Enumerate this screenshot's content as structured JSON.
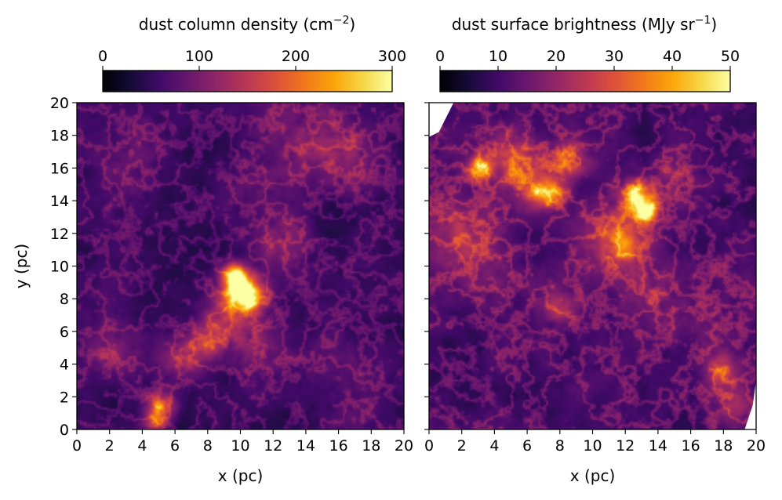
{
  "chart_data": [
    {
      "type": "heatmap",
      "panel": "left",
      "quantity": "dust column density",
      "colormap": "inferno",
      "xlabel": "x (pc)",
      "ylabel": "y (pc)",
      "xlim": [
        0,
        20
      ],
      "ylim": [
        0,
        20
      ],
      "xticks": [
        "0",
        "2",
        "4",
        "6",
        "8",
        "10",
        "12",
        "14",
        "16",
        "18",
        "20"
      ],
      "yticks": [
        "0",
        "2",
        "4",
        "6",
        "8",
        "10",
        "12",
        "14",
        "16",
        "18",
        "20"
      ],
      "features": [
        {
          "x": 10.0,
          "y": 8.5,
          "value": 300,
          "sigma": 0.8
        },
        {
          "x": 9.6,
          "y": 9.5,
          "value": 260,
          "sigma": 0.5
        },
        {
          "x": 10.6,
          "y": 8.0,
          "value": 230,
          "sigma": 0.6
        },
        {
          "x": 9.0,
          "y": 6.8,
          "value": 150,
          "sigma": 1.0
        },
        {
          "x": 8.0,
          "y": 5.2,
          "value": 140,
          "sigma": 0.8
        },
        {
          "x": 6.5,
          "y": 4.2,
          "value": 130,
          "sigma": 0.9
        },
        {
          "x": 5.2,
          "y": 1.5,
          "value": 190,
          "sigma": 0.6
        },
        {
          "x": 4.8,
          "y": 0.6,
          "value": 180,
          "sigma": 0.5
        },
        {
          "x": 11.0,
          "y": 5.0,
          "value": 120,
          "sigma": 1.2
        },
        {
          "x": 12.5,
          "y": 11.5,
          "value": 110,
          "sigma": 1.2
        },
        {
          "x": 16.0,
          "y": 17.0,
          "value": 120,
          "sigma": 1.5
        },
        {
          "x": 13.0,
          "y": 18.5,
          "value": 100,
          "sigma": 1.5
        },
        {
          "x": 11.0,
          "y": 15.0,
          "value": 90,
          "sigma": 1.5
        },
        {
          "x": 2.0,
          "y": 5.0,
          "value": 95,
          "sigma": 1.5
        },
        {
          "x": 17.0,
          "y": 3.0,
          "value": 85,
          "sigma": 1.5
        },
        {
          "x": 3.0,
          "y": 17.0,
          "value": 85,
          "sigma": 1.8
        }
      ],
      "background": 50,
      "colorbar": {
        "title": "dust column density (cm",
        "title_exponent": "−2",
        "title_close": ")",
        "range": [
          0,
          300
        ],
        "ticks": [
          {
            "value": 0,
            "label": "0"
          },
          {
            "value": 100,
            "label": "100"
          },
          {
            "value": 200,
            "label": "200"
          },
          {
            "value": 300,
            "label": "300"
          }
        ]
      }
    },
    {
      "type": "heatmap",
      "panel": "right",
      "quantity": "dust surface brightness",
      "colormap": "inferno",
      "xlabel": "x (pc)",
      "ylabel": "",
      "xlim": [
        0,
        20
      ],
      "ylim": [
        0,
        20
      ],
      "xticks": [
        "0",
        "2",
        "4",
        "6",
        "8",
        "10",
        "12",
        "14",
        "16",
        "18",
        "20"
      ],
      "yticks_labeled": false,
      "features": [
        {
          "x": 12.8,
          "y": 14.3,
          "value": 50,
          "sigma": 0.6
        },
        {
          "x": 13.3,
          "y": 13.3,
          "value": 45,
          "sigma": 0.5
        },
        {
          "x": 3.1,
          "y": 16.0,
          "value": 45,
          "sigma": 0.5
        },
        {
          "x": 5.5,
          "y": 16.3,
          "value": 32,
          "sigma": 1.2
        },
        {
          "x": 7.5,
          "y": 14.5,
          "value": 38,
          "sigma": 0.6
        },
        {
          "x": 8.5,
          "y": 16.5,
          "value": 30,
          "sigma": 0.8
        },
        {
          "x": 6.5,
          "y": 14.5,
          "value": 30,
          "sigma": 0.7
        },
        {
          "x": 11.5,
          "y": 12.5,
          "value": 28,
          "sigma": 1.0
        },
        {
          "x": 12.0,
          "y": 11.0,
          "value": 30,
          "sigma": 0.8
        },
        {
          "x": 13.5,
          "y": 9.0,
          "value": 20,
          "sigma": 1.5
        },
        {
          "x": 8.0,
          "y": 7.5,
          "value": 22,
          "sigma": 0.8
        },
        {
          "x": 2.0,
          "y": 12.0,
          "value": 22,
          "sigma": 1.5
        },
        {
          "x": 18.0,
          "y": 3.5,
          "value": 30,
          "sigma": 0.8
        },
        {
          "x": 18.7,
          "y": 1.5,
          "value": 26,
          "sigma": 0.7
        },
        {
          "x": 15.0,
          "y": 15.5,
          "value": 20,
          "sigma": 1.0
        },
        {
          "x": 4.0,
          "y": 10.0,
          "value": 16,
          "sigma": 1.5
        },
        {
          "x": 10.0,
          "y": 11.0,
          "value": 18,
          "sigma": 1.2
        },
        {
          "x": 16.5,
          "y": 6.5,
          "value": 14,
          "sigma": 1.5
        }
      ],
      "background": 10,
      "blank_regions": [
        {
          "corner": "top-left",
          "polygon_data": [
            [
              0,
              20
            ],
            [
              1.5,
              20
            ],
            [
              0.6,
              18.2
            ],
            [
              0,
              17.9
            ]
          ]
        },
        {
          "corner": "right-edge",
          "polygon_data": [
            [
              20,
              0
            ],
            [
              19.3,
              0
            ],
            [
              19.8,
              1.5
            ],
            [
              20,
              3
            ]
          ]
        }
      ],
      "colorbar": {
        "title": "dust surface brightness (MJy sr",
        "title_exponent": "−1",
        "title_close": ")",
        "range": [
          0,
          50
        ],
        "ticks": [
          {
            "value": 0,
            "label": "0"
          },
          {
            "value": 10,
            "label": "10"
          },
          {
            "value": 20,
            "label": "20"
          },
          {
            "value": 30,
            "label": "30"
          },
          {
            "value": 40,
            "label": "40"
          },
          {
            "value": 50,
            "label": "50"
          }
        ]
      }
    }
  ]
}
